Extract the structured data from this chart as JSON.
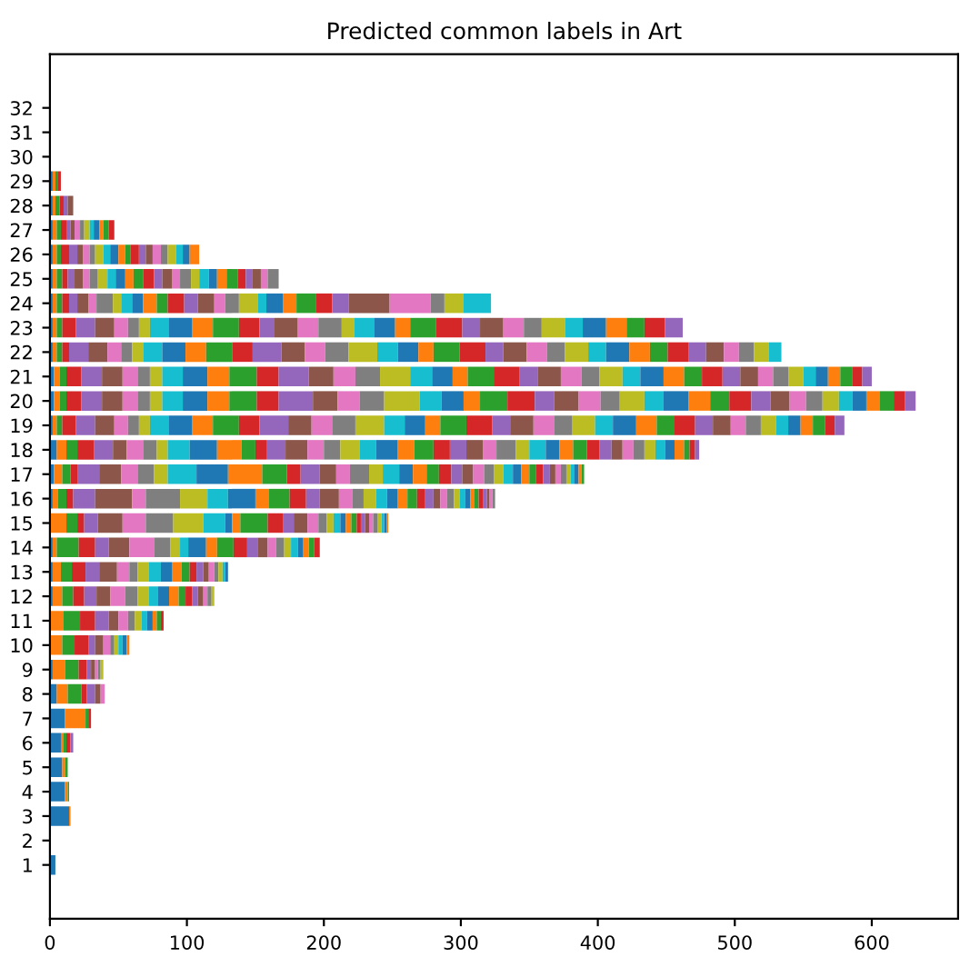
{
  "chart_data": {
    "type": "bar",
    "orientation": "horizontal",
    "stacked": true,
    "title": "Predicted common labels in Art",
    "categories": [
      "32",
      "31",
      "30",
      "29",
      "28",
      "27",
      "26",
      "25",
      "24",
      "23",
      "22",
      "21",
      "20",
      "19",
      "18",
      "17",
      "16",
      "15",
      "14",
      "13",
      "12",
      "11",
      "10",
      "9",
      "8",
      "7",
      "6",
      "5",
      "4",
      "3",
      "2",
      "1"
    ],
    "xlim": [
      0,
      663
    ],
    "xticks": [
      0,
      100,
      200,
      300,
      400,
      500,
      600
    ],
    "grid": false,
    "legend": false,
    "series": [
      {
        "color": "#1f77b4",
        "values": [
          null,
          null,
          null,
          2,
          2,
          2,
          2,
          2,
          2,
          2,
          2,
          3,
          3,
          2,
          5,
          3,
          2,
          null,
          2,
          2,
          2,
          null,
          null,
          2,
          5,
          11,
          8,
          9,
          11,
          14,
          null,
          4
        ]
      },
      {
        "color": "#ff7f0e",
        "values": [
          null,
          null,
          null,
          2,
          2,
          3,
          3,
          3,
          3,
          3,
          3,
          4,
          4,
          3,
          7,
          6,
          4,
          12,
          3,
          6,
          7,
          10,
          9,
          9,
          8,
          15,
          2,
          2,
          2,
          1,
          null,
          null
        ]
      },
      {
        "color": "#2ca02c",
        "values": [
          null,
          null,
          null,
          2,
          3,
          3,
          3,
          4,
          4,
          4,
          4,
          5,
          5,
          4,
          8,
          6,
          6,
          8,
          16,
          8,
          8,
          12,
          9,
          10,
          10,
          2,
          2,
          2,
          1,
          null,
          null,
          null
        ]
      },
      {
        "color": "#d62728",
        "values": [
          null,
          null,
          null,
          2,
          3,
          4,
          6,
          4,
          5,
          10,
          5,
          11,
          11,
          10,
          12,
          5,
          5,
          5,
          12,
          10,
          8,
          11,
          10,
          6,
          4,
          2,
          3,
          null,
          null,
          null,
          null,
          null
        ]
      },
      {
        "color": "#9467bd",
        "values": [
          null,
          null,
          null,
          null,
          3,
          3,
          6,
          5,
          6,
          14,
          14,
          15,
          15,
          14,
          14,
          16,
          16,
          10,
          10,
          10,
          9,
          10,
          5,
          3,
          6,
          null,
          2,
          null,
          null,
          null,
          null,
          null
        ]
      },
      {
        "color": "#8c564b",
        "values": [
          null,
          null,
          null,
          null,
          4,
          3,
          4,
          6,
          8,
          14,
          14,
          15,
          15,
          14,
          10,
          16,
          27,
          18,
          15,
          13,
          10,
          7,
          6,
          3,
          4,
          null,
          null,
          null,
          null,
          null,
          null,
          null
        ]
      },
      {
        "color": "#e377c2",
        "values": [
          null,
          null,
          null,
          null,
          null,
          4,
          5,
          5,
          6,
          10,
          10,
          11,
          11,
          10,
          12,
          12,
          10,
          17,
          18,
          9,
          11,
          7,
          5,
          2,
          3,
          null,
          null,
          null,
          null,
          null,
          null,
          null
        ]
      },
      {
        "color": "#7f7f7f",
        "values": [
          null,
          null,
          null,
          null,
          null,
          3,
          4,
          6,
          12,
          8,
          8,
          9,
          9,
          8,
          10,
          12,
          25,
          20,
          12,
          6,
          9,
          5,
          3,
          2,
          null,
          null,
          null,
          null,
          null,
          null,
          null,
          null
        ]
      },
      {
        "color": "#bcbd22",
        "values": [
          null,
          null,
          null,
          null,
          null,
          4,
          6,
          7,
          6,
          8,
          8,
          9,
          9,
          8,
          8,
          10,
          20,
          22,
          7,
          8,
          8,
          5,
          3,
          2,
          null,
          null,
          null,
          null,
          null,
          null,
          null,
          null
        ]
      },
      {
        "color": "#17becf",
        "values": [
          null,
          null,
          null,
          null,
          null,
          3,
          5,
          6,
          8,
          14,
          14,
          15,
          15,
          14,
          16,
          21,
          15,
          16,
          6,
          9,
          7,
          4,
          3,
          null,
          null,
          null,
          null,
          null,
          null,
          null,
          null,
          null
        ]
      },
      {
        "color": "#1f77b4",
        "values": [
          null,
          null,
          null,
          null,
          null,
          4,
          6,
          7,
          8,
          17,
          17,
          18,
          18,
          17,
          20,
          23,
          20,
          5,
          13,
          8,
          8,
          4,
          3,
          null,
          null,
          null,
          null,
          null,
          null,
          null,
          null,
          null
        ]
      },
      {
        "color": "#ff7f0e",
        "values": [
          null,
          null,
          null,
          null,
          null,
          3,
          5,
          6,
          10,
          15,
          15,
          16,
          16,
          15,
          18,
          25,
          10,
          6,
          8,
          7,
          7,
          3,
          2,
          null,
          null,
          null,
          null,
          null,
          null,
          null,
          null,
          null
        ]
      },
      {
        "color": "#2ca02c",
        "values": [
          null,
          null,
          null,
          null,
          null,
          4,
          4,
          7,
          8,
          19,
          19,
          20,
          20,
          19,
          10,
          18,
          15,
          20,
          12,
          6,
          5,
          3,
          null,
          null,
          null,
          null,
          null,
          null,
          null,
          null,
          null,
          null
        ]
      },
      {
        "color": "#d62728",
        "values": [
          null,
          null,
          null,
          null,
          null,
          4,
          6,
          8,
          12,
          15,
          15,
          16,
          16,
          15,
          8,
          10,
          12,
          11,
          10,
          5,
          5,
          2,
          null,
          null,
          null,
          null,
          null,
          null,
          null,
          null,
          null,
          null
        ]
      },
      {
        "color": "#9467bd",
        "values": [
          null,
          null,
          null,
          null,
          null,
          null,
          5,
          6,
          10,
          11,
          21,
          22,
          25,
          21,
          14,
          14,
          10,
          8,
          8,
          5,
          4,
          null,
          null,
          null,
          null,
          null,
          null,
          null,
          null,
          null,
          null,
          null
        ]
      },
      {
        "color": "#8c564b",
        "values": [
          null,
          null,
          null,
          null,
          null,
          null,
          5,
          7,
          12,
          17,
          17,
          18,
          18,
          17,
          16,
          12,
          14,
          10,
          7,
          4,
          4,
          null,
          null,
          null,
          null,
          null,
          null,
          null,
          null,
          null,
          null,
          null
        ]
      },
      {
        "color": "#e377c2",
        "values": [
          null,
          null,
          null,
          null,
          null,
          null,
          6,
          6,
          8,
          15,
          15,
          16,
          16,
          15,
          12,
          10,
          10,
          8,
          6,
          4,
          3,
          null,
          null,
          null,
          null,
          null,
          null,
          null,
          null,
          null,
          null,
          null
        ]
      },
      {
        "color": "#7f7f7f",
        "values": [
          null,
          null,
          null,
          null,
          null,
          null,
          5,
          8,
          10,
          17,
          17,
          18,
          18,
          17,
          12,
          14,
          8,
          6,
          6,
          3,
          3,
          null,
          null,
          null,
          null,
          null,
          null,
          null,
          null,
          null,
          null,
          null
        ]
      },
      {
        "color": "#bcbd22",
        "values": [
          null,
          null,
          null,
          null,
          null,
          null,
          6,
          6,
          14,
          9,
          21,
          22,
          26,
          21,
          14,
          10,
          9,
          5,
          5,
          3,
          2,
          null,
          null,
          null,
          null,
          null,
          null,
          null,
          null,
          null,
          null,
          null
        ]
      },
      {
        "color": "#17becf",
        "values": [
          null,
          null,
          null,
          null,
          null,
          null,
          5,
          7,
          6,
          15,
          15,
          16,
          16,
          15,
          12,
          12,
          8,
          5,
          5,
          2,
          null,
          null,
          null,
          null,
          null,
          null,
          null,
          null,
          null,
          null,
          null,
          null
        ]
      },
      {
        "color": "#1f77b4",
        "values": [
          null,
          null,
          null,
          null,
          null,
          null,
          5,
          6,
          12,
          15,
          15,
          15,
          16,
          15,
          16,
          10,
          8,
          4,
          4,
          2,
          null,
          null,
          null,
          null,
          null,
          null,
          null,
          null,
          null,
          null,
          null,
          null
        ]
      },
      {
        "color": "#ff7f0e",
        "values": [
          null,
          null,
          null,
          null,
          null,
          null,
          7,
          7,
          10,
          11,
          11,
          11,
          12,
          11,
          12,
          10,
          7,
          4,
          4,
          null,
          null,
          null,
          null,
          null,
          null,
          null,
          null,
          null,
          null,
          null,
          null,
          null
        ]
      },
      {
        "color": "#2ca02c",
        "values": [
          null,
          null,
          null,
          null,
          null,
          null,
          null,
          8,
          14,
          19,
          19,
          19,
          20,
          19,
          14,
          9,
          7,
          4,
          4,
          null,
          null,
          null,
          null,
          null,
          null,
          null,
          null,
          null,
          null,
          null,
          null,
          null
        ]
      },
      {
        "color": "#d62728",
        "values": [
          null,
          null,
          null,
          null,
          null,
          null,
          null,
          6,
          12,
          19,
          19,
          19,
          20,
          19,
          12,
          9,
          6,
          3,
          4,
          null,
          null,
          null,
          null,
          null,
          null,
          null,
          null,
          null,
          null,
          null,
          null,
          null
        ]
      },
      {
        "color": "#9467bd",
        "values": [
          null,
          null,
          null,
          null,
          null,
          null,
          null,
          5,
          12,
          13,
          13,
          13,
          14,
          13,
          12,
          8,
          6,
          3,
          null,
          null,
          null,
          null,
          null,
          null,
          null,
          null,
          null,
          null,
          null,
          null,
          null,
          null
        ]
      },
      {
        "color": "#8c564b",
        "values": [
          null,
          null,
          null,
          null,
          null,
          null,
          null,
          6,
          30,
          17,
          17,
          17,
          18,
          17,
          12,
          8,
          5,
          3,
          null,
          null,
          null,
          null,
          null,
          null,
          null,
          null,
          null,
          null,
          null,
          null,
          null,
          null
        ]
      },
      {
        "color": "#e377c2",
        "values": [
          null,
          null,
          null,
          null,
          null,
          null,
          null,
          5,
          30,
          15,
          15,
          15,
          16,
          15,
          10,
          8,
          5,
          3,
          null,
          null,
          null,
          null,
          null,
          null,
          null,
          null,
          null,
          null,
          null,
          null,
          null,
          null
        ]
      },
      {
        "color": "#7f7f7f",
        "values": [
          null,
          null,
          null,
          null,
          null,
          null,
          null,
          8,
          10,
          13,
          13,
          13,
          14,
          13,
          14,
          7,
          5,
          3,
          null,
          null,
          null,
          null,
          null,
          null,
          null,
          null,
          null,
          null,
          null,
          null,
          null,
          null
        ]
      },
      {
        "color": "#bcbd22",
        "values": [
          null,
          null,
          null,
          null,
          null,
          null,
          null,
          null,
          14,
          17,
          17,
          17,
          18,
          17,
          10,
          7,
          4,
          3,
          null,
          null,
          null,
          null,
          null,
          null,
          null,
          null,
          null,
          null,
          null,
          null,
          null,
          null
        ]
      },
      {
        "color": "#17becf",
        "values": [
          null,
          null,
          null,
          null,
          null,
          null,
          null,
          null,
          20,
          13,
          13,
          13,
          14,
          13,
          12,
          7,
          4,
          2,
          null,
          null,
          null,
          null,
          null,
          null,
          null,
          null,
          null,
          null,
          null,
          null,
          null,
          null
        ]
      },
      {
        "color": "#1f77b4",
        "values": [
          null,
          null,
          null,
          null,
          null,
          null,
          null,
          null,
          null,
          17,
          17,
          17,
          18,
          17,
          10,
          6,
          4,
          2,
          null,
          null,
          null,
          null,
          null,
          null,
          null,
          null,
          null,
          null,
          null,
          null,
          null,
          null
        ]
      },
      {
        "color": "#ff7f0e",
        "values": [
          null,
          null,
          null,
          null,
          null,
          null,
          null,
          null,
          null,
          15,
          15,
          15,
          16,
          15,
          10,
          6,
          3,
          1,
          null,
          null,
          null,
          null,
          null,
          null,
          null,
          null,
          null,
          null,
          null,
          null,
          null,
          null
        ]
      },
      {
        "color": "#2ca02c",
        "values": [
          null,
          null,
          null,
          null,
          null,
          null,
          null,
          null,
          null,
          13,
          13,
          13,
          14,
          13,
          10,
          5,
          3,
          null,
          null,
          null,
          null,
          null,
          null,
          null,
          null,
          null,
          null,
          null,
          null,
          null,
          null,
          null
        ]
      },
      {
        "color": "#d62728",
        "values": [
          null,
          null,
          null,
          null,
          null,
          null,
          null,
          null,
          null,
          15,
          15,
          15,
          16,
          15,
          9,
          5,
          3,
          null,
          null,
          null,
          null,
          null,
          null,
          null,
          null,
          null,
          null,
          null,
          null,
          null,
          null,
          null
        ]
      },
      {
        "color": "#9467bd",
        "values": [
          null,
          null,
          null,
          null,
          null,
          null,
          null,
          null,
          null,
          13,
          13,
          13,
          14,
          13,
          9,
          5,
          3,
          null,
          null,
          null,
          null,
          null,
          null,
          null,
          null,
          null,
          null,
          null,
          null,
          null,
          null,
          null
        ]
      },
      {
        "color": "#8c564b",
        "values": [
          null,
          null,
          null,
          null,
          null,
          null,
          null,
          null,
          null,
          null,
          13,
          13,
          14,
          13,
          8,
          4,
          2,
          null,
          null,
          null,
          null,
          null,
          null,
          null,
          null,
          null,
          null,
          null,
          null,
          null,
          null,
          null
        ]
      },
      {
        "color": "#e377c2",
        "values": [
          null,
          null,
          null,
          null,
          null,
          null,
          null,
          null,
          null,
          null,
          11,
          11,
          12,
          11,
          8,
          4,
          2,
          null,
          null,
          null,
          null,
          null,
          null,
          null,
          null,
          null,
          null,
          null,
          null,
          null,
          null,
          null
        ]
      },
      {
        "color": "#7f7f7f",
        "values": [
          null,
          null,
          null,
          null,
          null,
          null,
          null,
          null,
          null,
          null,
          11,
          11,
          12,
          11,
          8,
          4,
          2,
          null,
          null,
          null,
          null,
          null,
          null,
          null,
          null,
          null,
          null,
          null,
          null,
          null,
          null,
          null
        ]
      },
      {
        "color": "#bcbd22",
        "values": [
          null,
          null,
          null,
          null,
          null,
          null,
          null,
          null,
          null,
          null,
          11,
          11,
          12,
          11,
          8,
          3,
          null,
          null,
          null,
          null,
          null,
          null,
          null,
          null,
          null,
          null,
          null,
          null,
          null,
          null,
          null,
          null
        ]
      },
      {
        "color": "#17becf",
        "values": [
          null,
          null,
          null,
          null,
          null,
          null,
          null,
          null,
          null,
          null,
          9,
          9,
          10,
          9,
          7,
          3,
          null,
          null,
          null,
          null,
          null,
          null,
          null,
          null,
          null,
          null,
          null,
          null,
          null,
          null,
          null,
          null
        ]
      },
      {
        "color": "#1f77b4",
        "values": [
          null,
          null,
          null,
          null,
          null,
          null,
          null,
          null,
          null,
          null,
          null,
          9,
          10,
          9,
          7,
          3,
          null,
          null,
          null,
          null,
          null,
          null,
          null,
          null,
          null,
          null,
          null,
          null,
          null,
          null,
          null,
          null
        ]
      },
      {
        "color": "#ff7f0e",
        "values": [
          null,
          null,
          null,
          null,
          null,
          null,
          null,
          null,
          null,
          null,
          null,
          9,
          10,
          9,
          7,
          2,
          null,
          null,
          null,
          null,
          null,
          null,
          null,
          null,
          null,
          null,
          null,
          null,
          null,
          null,
          null,
          null
        ]
      },
      {
        "color": "#2ca02c",
        "values": [
          null,
          null,
          null,
          null,
          null,
          null,
          null,
          null,
          null,
          null,
          null,
          9,
          10,
          9,
          4,
          2,
          null,
          null,
          null,
          null,
          null,
          null,
          null,
          null,
          null,
          null,
          null,
          null,
          null,
          null,
          null,
          null
        ]
      },
      {
        "color": "#d62728",
        "values": [
          null,
          null,
          null,
          null,
          null,
          null,
          null,
          null,
          null,
          null,
          null,
          7,
          8,
          7,
          4,
          null,
          null,
          null,
          null,
          null,
          null,
          null,
          null,
          null,
          null,
          null,
          null,
          null,
          null,
          null,
          null,
          null
        ]
      },
      {
        "color": "#9467bd",
        "values": [
          null,
          null,
          null,
          null,
          null,
          null,
          null,
          null,
          null,
          null,
          null,
          7,
          8,
          7,
          3,
          null,
          null,
          null,
          null,
          null,
          null,
          null,
          null,
          null,
          null,
          null,
          null,
          null,
          null,
          null,
          null,
          null
        ]
      }
    ]
  }
}
